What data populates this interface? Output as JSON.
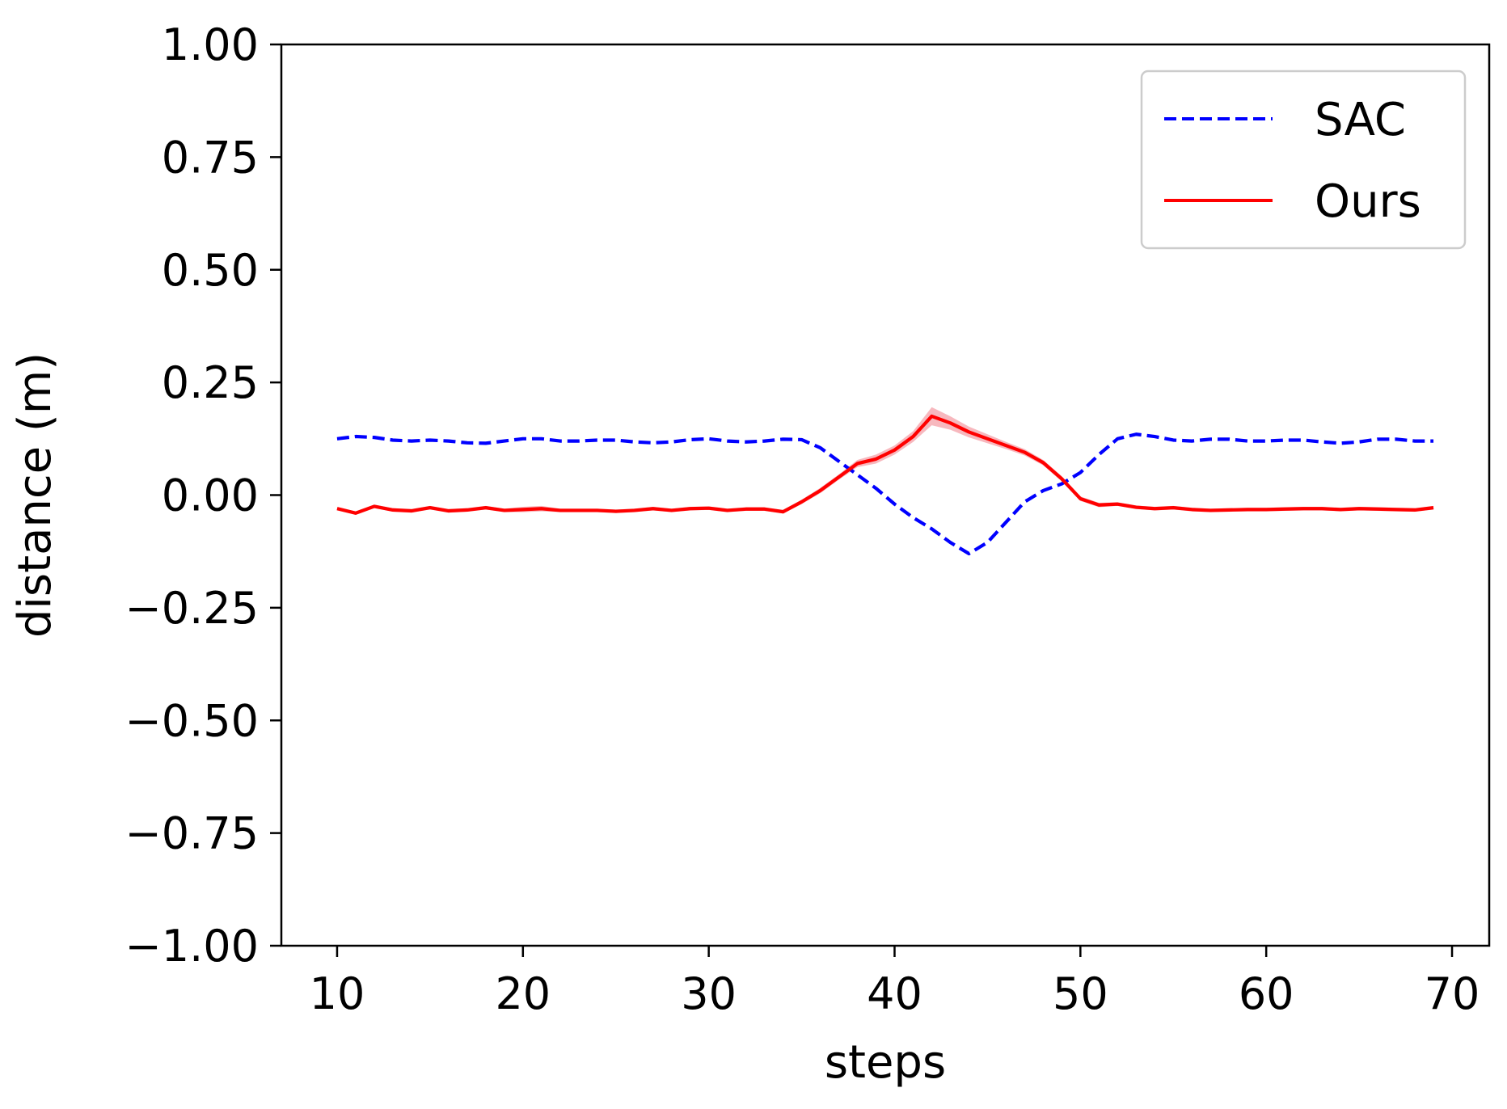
{
  "chart_data": {
    "type": "line",
    "xlabel": "steps",
    "ylabel": "distance (m)",
    "xlim": [
      7,
      72
    ],
    "ylim": [
      -1.0,
      1.0
    ],
    "x_ticks": [
      10,
      20,
      30,
      40,
      50,
      60,
      70
    ],
    "y_ticks": [
      -1.0,
      -0.75,
      -0.5,
      -0.25,
      0.0,
      0.25,
      0.5,
      0.75,
      1.0
    ],
    "x_tick_labels": [
      "10",
      "20",
      "30",
      "40",
      "50",
      "60",
      "70"
    ],
    "y_tick_labels": [
      "−1.00",
      "−0.75",
      "−0.50",
      "−0.25",
      "0.00",
      "0.25",
      "0.50",
      "0.75",
      "1.00"
    ],
    "grid": false,
    "legend_position": "top-right",
    "x": [
      10,
      11,
      12,
      13,
      14,
      15,
      16,
      17,
      18,
      19,
      20,
      21,
      22,
      23,
      24,
      25,
      26,
      27,
      28,
      29,
      30,
      31,
      32,
      33,
      34,
      35,
      36,
      37,
      38,
      39,
      40,
      41,
      42,
      43,
      44,
      45,
      46,
      47,
      48,
      49,
      50,
      51,
      52,
      53,
      54,
      55,
      56,
      57,
      58,
      59,
      60,
      61,
      62,
      63,
      64,
      65,
      66,
      67,
      68,
      69
    ],
    "series": [
      {
        "name": "SAC",
        "color": "#0000ff",
        "style": "dashed",
        "values": [
          0.125,
          0.13,
          0.128,
          0.122,
          0.12,
          0.122,
          0.12,
          0.116,
          0.115,
          0.12,
          0.125,
          0.125,
          0.12,
          0.12,
          0.122,
          0.122,
          0.118,
          0.116,
          0.118,
          0.123,
          0.125,
          0.12,
          0.118,
          0.12,
          0.124,
          0.123,
          0.105,
          0.075,
          0.045,
          0.015,
          -0.02,
          -0.05,
          -0.075,
          -0.105,
          -0.13,
          -0.105,
          -0.06,
          -0.015,
          0.01,
          0.025,
          0.05,
          0.09,
          0.125,
          0.135,
          0.13,
          0.122,
          0.12,
          0.124,
          0.124,
          0.12,
          0.12,
          0.122,
          0.122,
          0.118,
          0.115,
          0.118,
          0.124,
          0.124,
          0.12,
          0.12
        ]
      },
      {
        "name": "Ours",
        "color": "#ff0000",
        "style": "solid",
        "values": [
          -0.03,
          -0.04,
          -0.025,
          -0.033,
          -0.035,
          -0.028,
          -0.035,
          -0.033,
          -0.028,
          -0.034,
          -0.032,
          -0.03,
          -0.034,
          -0.034,
          -0.034,
          -0.036,
          -0.034,
          -0.03,
          -0.034,
          -0.03,
          -0.029,
          -0.034,
          -0.031,
          -0.031,
          -0.037,
          -0.015,
          0.01,
          0.04,
          0.07,
          0.08,
          0.1,
          0.13,
          0.175,
          0.16,
          0.14,
          0.125,
          0.11,
          0.095,
          0.072,
          0.036,
          -0.008,
          -0.022,
          -0.02,
          -0.027,
          -0.03,
          -0.028,
          -0.032,
          -0.034,
          -0.033,
          -0.032,
          -0.032,
          -0.031,
          -0.03,
          -0.03,
          -0.032,
          -0.03,
          -0.031,
          -0.032,
          -0.033,
          -0.028
        ],
        "band": [
          0,
          0.004,
          0.004,
          0.004,
          0.004,
          0.004,
          0.004,
          0.004,
          0.004,
          0.004,
          0.006,
          0.006,
          0.004,
          0.004,
          0.004,
          0.004,
          0.004,
          0.004,
          0.004,
          0.004,
          0.004,
          0.004,
          0.004,
          0.004,
          0.004,
          0.005,
          0.006,
          0.006,
          0.008,
          0.01,
          0.01,
          0.012,
          0.02,
          0.015,
          0.012,
          0.01,
          0.008,
          0.007,
          0.006,
          0.006,
          0.005,
          0.005,
          0.004,
          0.004,
          0.004,
          0.004,
          0.004,
          0.004,
          0.004,
          0.004,
          0.004,
          0.004,
          0.004,
          0.004,
          0.004,
          0.004,
          0.004,
          0.004,
          0.004,
          0.004
        ],
        "band_color": "#f4a0a8"
      }
    ]
  }
}
